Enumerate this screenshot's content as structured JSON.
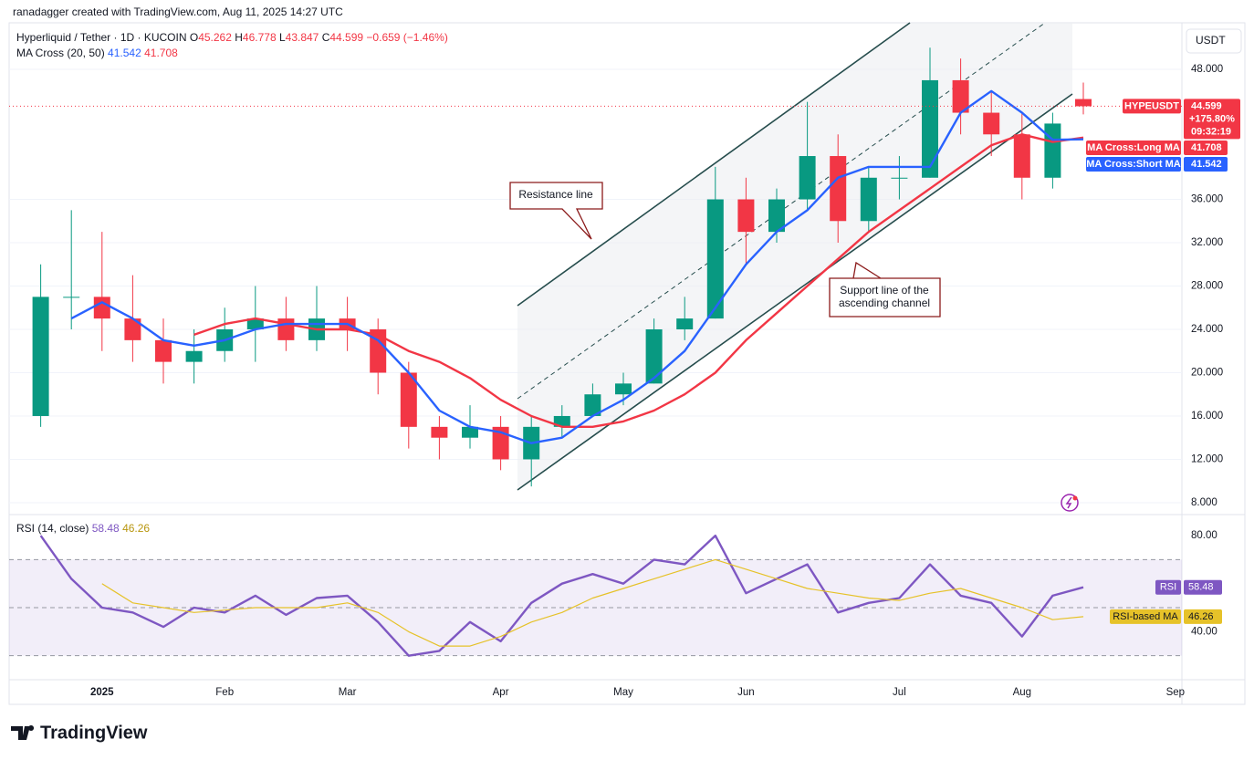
{
  "credit": "ranadagger created with TradingView.com, Aug 11, 2025 14:27 UTC",
  "currency": "USDT",
  "brand": "TradingView",
  "chart_data": [
    {
      "type": "candlestick",
      "title": "Hyperliquid / Tether · 1D · KUCOIN",
      "ohlc_labels": [
        "O",
        "H",
        "L",
        "C"
      ],
      "change": "−0.659 (−1.46%)",
      "indicator": "MA Cross (20, 50)",
      "price_change": "+175.80%",
      "countdown": "09:32:19",
      "annotations": [
        "Resistance line",
        "Support line of the",
        "ascending channel"
      ],
      "categories": [
        null,
        null,
        "2025",
        null,
        null,
        null,
        "Feb",
        null,
        null,
        null,
        "Mar",
        null,
        null,
        null,
        null,
        "Apr",
        null,
        null,
        null,
        "May",
        null,
        null,
        null,
        "Jun",
        null,
        null,
        null,
        null,
        "Jul",
        null,
        null,
        null,
        "Aug",
        null,
        null,
        null,
        null,
        "Sep"
      ],
      "candles": {
        "name": "HYPEUSDT",
        "up_color": "#089981",
        "down_color": "#f23645",
        "open": [
          16,
          27,
          27,
          25,
          23,
          21,
          22,
          24,
          25,
          23,
          25,
          24,
          20,
          15,
          14,
          15,
          12,
          15,
          16,
          18,
          19,
          24,
          25,
          36,
          33,
          36,
          40,
          34,
          38,
          38,
          47,
          44,
          42,
          38,
          45.262,
          null,
          null,
          null
        ],
        "high": [
          30,
          35,
          33,
          29,
          25,
          24,
          26,
          28,
          27,
          28,
          27,
          25,
          21,
          16,
          17,
          16,
          16,
          17,
          19,
          20,
          25,
          27,
          39,
          38,
          37,
          45,
          42,
          39,
          40,
          50,
          49,
          46,
          44,
          44,
          46.778,
          null,
          null,
          null
        ],
        "low": [
          15,
          24,
          22,
          21,
          19,
          19,
          21,
          21,
          22,
          22,
          22,
          18,
          13,
          12,
          13,
          11,
          9.5,
          14,
          16,
          17,
          19,
          23,
          25,
          30,
          32,
          35,
          32,
          33,
          36,
          38,
          42,
          40,
          36,
          37,
          43.847,
          null,
          null,
          null
        ],
        "close": [
          27,
          27,
          25,
          23,
          21,
          22,
          24,
          25,
          23,
          25,
          24,
          20,
          15,
          14,
          15,
          12,
          15,
          16,
          18,
          19,
          24,
          25,
          36,
          33,
          36,
          40,
          34,
          38,
          38,
          47,
          44,
          42,
          38,
          43,
          44.599,
          null,
          null,
          null
        ]
      },
      "series": [
        {
          "name": "MA Cross:Long MA",
          "color": "#f23645",
          "values": [
            null,
            null,
            null,
            null,
            null,
            23.5,
            24.5,
            25,
            24.5,
            24,
            24,
            23.5,
            22,
            21,
            19.5,
            17.5,
            16,
            15,
            15,
            15.5,
            16.5,
            18,
            20,
            23,
            25.5,
            28,
            30.5,
            33,
            35,
            37,
            39,
            41,
            42,
            41.3,
            41.708,
            null,
            null,
            null
          ]
        },
        {
          "name": "MA Cross:Short MA",
          "color": "#2962ff",
          "values": [
            null,
            25,
            26.5,
            25,
            23,
            22.5,
            23,
            24,
            24.5,
            24.5,
            24.5,
            23,
            20,
            16.5,
            15,
            14.5,
            13.5,
            14,
            16,
            17.5,
            19.5,
            22,
            26,
            30,
            33,
            35,
            38,
            39,
            39,
            39,
            44,
            46,
            44,
            41.5,
            41.542,
            null,
            null,
            null
          ]
        }
      ],
      "ylim": [
        7.07,
        52.3
      ],
      "yticks": [
        {
          "value": 8,
          "label": "8.000"
        },
        {
          "value": 12,
          "label": "12.000"
        },
        {
          "value": 16,
          "label": "16.000"
        },
        {
          "value": 20,
          "label": "20.000"
        },
        {
          "value": 24,
          "label": "24.000"
        },
        {
          "value": 28,
          "label": "28.000"
        },
        {
          "value": 32,
          "label": "32.000"
        },
        {
          "value": 36,
          "label": "36.000"
        },
        {
          "value": 48,
          "label": "48.000"
        }
      ],
      "grid": true
    },
    {
      "type": "line",
      "indicator": "RSI (14, close)",
      "series": [
        {
          "name": "RSI",
          "color": "#7e57c2",
          "values": [
            80,
            62,
            50,
            48,
            42,
            50,
            48,
            55,
            47,
            54,
            55,
            44,
            30,
            32,
            44,
            36,
            52,
            60,
            64,
            60,
            70,
            68,
            80,
            56,
            62,
            68,
            48,
            52,
            54,
            68,
            55,
            52,
            38,
            55,
            58.48,
            null,
            null,
            null
          ]
        },
        {
          "name": "RSI-based MA",
          "color": "#e6c229",
          "values": [
            null,
            null,
            60,
            52,
            50,
            48,
            49,
            50,
            50,
            50,
            52,
            48,
            40,
            34,
            34,
            38,
            44,
            48,
            54,
            58,
            62,
            66,
            70,
            66,
            62,
            58,
            56,
            54,
            53,
            56,
            58,
            54,
            50,
            45,
            46.26,
            null,
            null,
            null
          ]
        }
      ],
      "levels": [
        70,
        50,
        30
      ],
      "ylim": [
        20,
        88
      ],
      "yticks": [
        {
          "value": 80,
          "label": "80.00"
        },
        {
          "value": 40,
          "label": "40.00"
        }
      ]
    }
  ]
}
